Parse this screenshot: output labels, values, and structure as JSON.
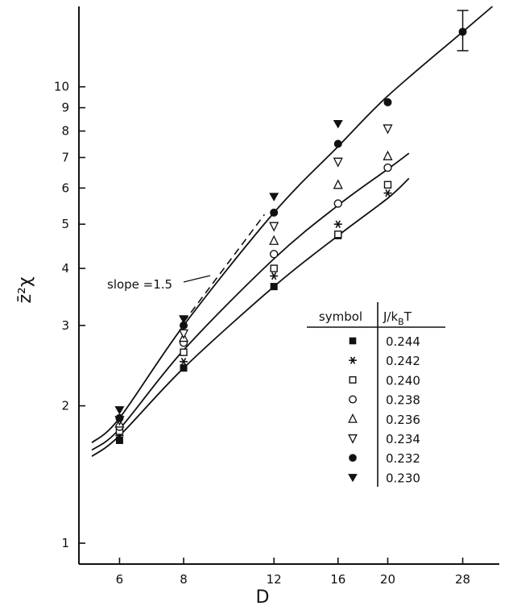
{
  "chart_data": {
    "type": "scatter",
    "xlabel": "D",
    "ylabel": "z̄²χ",
    "xscale": "log",
    "yscale": "log",
    "xlim": [
      5,
      33
    ],
    "ylim": [
      0.9,
      15
    ],
    "x_ticks": [
      6,
      8,
      12,
      16,
      20,
      28
    ],
    "y_ticks": [
      1,
      2,
      3,
      4,
      5,
      6,
      7,
      8,
      9,
      10
    ],
    "annotation": "slope =1.5",
    "legend": {
      "symbol_header": "symbol",
      "value_header": "J/k",
      "value_header_sub": "B",
      "value_header_tail": "T",
      "placement": "right"
    },
    "series": [
      {
        "name": "0.244",
        "marker": "filled-square",
        "points": [
          [
            6,
            1.68
          ],
          [
            8,
            2.42
          ],
          [
            12,
            3.65
          ],
          [
            16,
            4.72
          ]
        ]
      },
      {
        "name": "0.242",
        "marker": "asterisk",
        "points": [
          [
            6,
            1.72
          ],
          [
            8,
            2.5
          ],
          [
            12,
            3.85
          ],
          [
            16,
            5.0
          ],
          [
            20,
            5.85
          ]
        ]
      },
      {
        "name": "0.240",
        "marker": "open-square",
        "points": [
          [
            6,
            1.76
          ],
          [
            8,
            2.62
          ],
          [
            12,
            4.0
          ],
          [
            16,
            4.75
          ],
          [
            20,
            6.1
          ]
        ]
      },
      {
        "name": "0.238",
        "marker": "open-circle",
        "points": [
          [
            6,
            1.8
          ],
          [
            8,
            2.75
          ],
          [
            12,
            4.3
          ],
          [
            16,
            5.55
          ],
          [
            20,
            6.65
          ]
        ]
      },
      {
        "name": "0.236",
        "marker": "open-triangle-up",
        "points": [
          [
            6,
            1.83
          ],
          [
            8,
            2.82
          ],
          [
            12,
            4.6
          ],
          [
            16,
            6.1
          ],
          [
            20,
            7.05
          ]
        ]
      },
      {
        "name": "0.234",
        "marker": "open-triangle-down",
        "points": [
          [
            6,
            1.86
          ],
          [
            8,
            2.88
          ],
          [
            12,
            4.95
          ],
          [
            16,
            6.85
          ],
          [
            20,
            8.1
          ]
        ]
      },
      {
        "name": "0.232",
        "marker": "filled-circle",
        "points": [
          [
            6,
            1.88
          ],
          [
            8,
            3.0
          ],
          [
            12,
            5.3
          ],
          [
            16,
            7.5
          ],
          [
            20,
            9.25
          ],
          [
            28,
            13.2
          ]
        ],
        "error_bar": {
          "x": 28,
          "low": 12.0,
          "high": 14.7
        }
      },
      {
        "name": "0.230",
        "marker": "filled-triangle-down",
        "points": [
          [
            6,
            1.96
          ],
          [
            8,
            3.1
          ],
          [
            12,
            5.75
          ],
          [
            16,
            8.3
          ]
        ]
      }
    ],
    "fit_curves": [
      {
        "points": [
          [
            5.3,
            1.55
          ],
          [
            6,
            1.72
          ],
          [
            8,
            2.42
          ],
          [
            12,
            3.65
          ],
          [
            16,
            4.72
          ],
          [
            20,
            5.7
          ],
          [
            22,
            6.3
          ]
        ]
      },
      {
        "points": [
          [
            5.3,
            1.6
          ],
          [
            6,
            1.78
          ],
          [
            8,
            2.65
          ],
          [
            12,
            4.2
          ],
          [
            16,
            5.5
          ],
          [
            20,
            6.6
          ],
          [
            22,
            7.15
          ]
        ]
      },
      {
        "points": [
          [
            5.3,
            1.66
          ],
          [
            6,
            1.88
          ],
          [
            8,
            3.0
          ],
          [
            12,
            5.3
          ],
          [
            16,
            7.4
          ],
          [
            20,
            9.55
          ],
          [
            28,
            13.2
          ],
          [
            32,
            15.0
          ]
        ]
      }
    ],
    "slope_line": {
      "points": [
        [
          8,
          3.05
        ],
        [
          11.5,
          5.25
        ]
      ]
    }
  }
}
